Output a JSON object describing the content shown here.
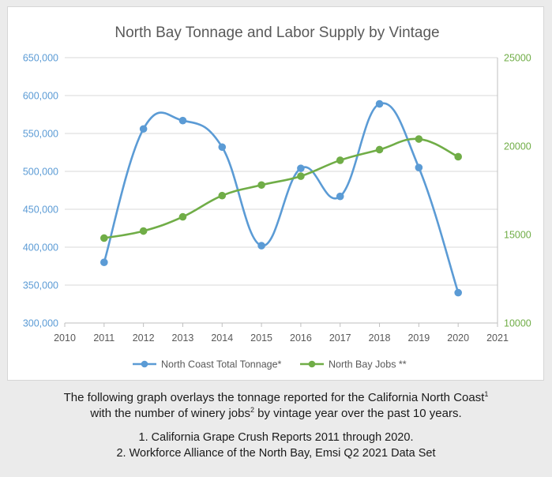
{
  "chart_data": {
    "type": "line",
    "title": "North Bay Tonnage and Labor Supply by Vintage",
    "xlabel": "",
    "ylabel": "",
    "xlim": [
      2010,
      2021
    ],
    "x_ticks": [
      "2010",
      "2011",
      "2012",
      "2013",
      "2014",
      "2015",
      "2016",
      "2017",
      "2018",
      "2019",
      "2020",
      "2021"
    ],
    "y_left": {
      "lim": [
        300000,
        650000
      ],
      "ticks": [
        300000,
        350000,
        400000,
        450000,
        500000,
        550000,
        600000,
        650000
      ],
      "tick_labels": [
        "300,000",
        "350,000",
        "400,000",
        "450,000",
        "500,000",
        "550,000",
        "600,000",
        "650,000"
      ],
      "color": "#5b9bd5"
    },
    "y_right": {
      "lim": [
        10000,
        25000
      ],
      "ticks": [
        10000,
        15000,
        20000,
        25000
      ],
      "tick_labels": [
        "10000",
        "15000",
        "20000",
        "25000"
      ],
      "color": "#70ad47"
    },
    "grid": true,
    "legend_position": "bottom",
    "series": [
      {
        "name": "North Coast Total Tonnage*",
        "axis": "left",
        "color": "#5b9bd5",
        "smooth": true,
        "x": [
          2011,
          2012,
          2013,
          2014,
          2015,
          2016,
          2017,
          2018,
          2019,
          2020
        ],
        "values": [
          380000,
          556000,
          567000,
          532000,
          402000,
          504000,
          467000,
          589000,
          505000,
          340000
        ]
      },
      {
        "name": "North Bay Jobs **",
        "axis": "right",
        "color": "#70ad47",
        "smooth": true,
        "x": [
          2011,
          2012,
          2013,
          2014,
          2015,
          2016,
          2017,
          2018,
          2019,
          2020
        ],
        "values": [
          14800,
          15200,
          16000,
          17200,
          17800,
          18300,
          19200,
          19800,
          20400,
          19400
        ]
      }
    ]
  },
  "caption": {
    "intro_line1": "The following graph overlays the tonnage reported for the California North Coast",
    "intro_sup1": "1",
    "intro_line2a": "with the number of winery jobs",
    "intro_sup2": "2",
    "intro_line2b": " by vintage year over the past 10 years.",
    "note1": "1. California Grape Crush Reports 2011 through 2020.",
    "note2": "2. Workforce Alliance of the North Bay, Emsi Q2 2021 Data Set"
  }
}
